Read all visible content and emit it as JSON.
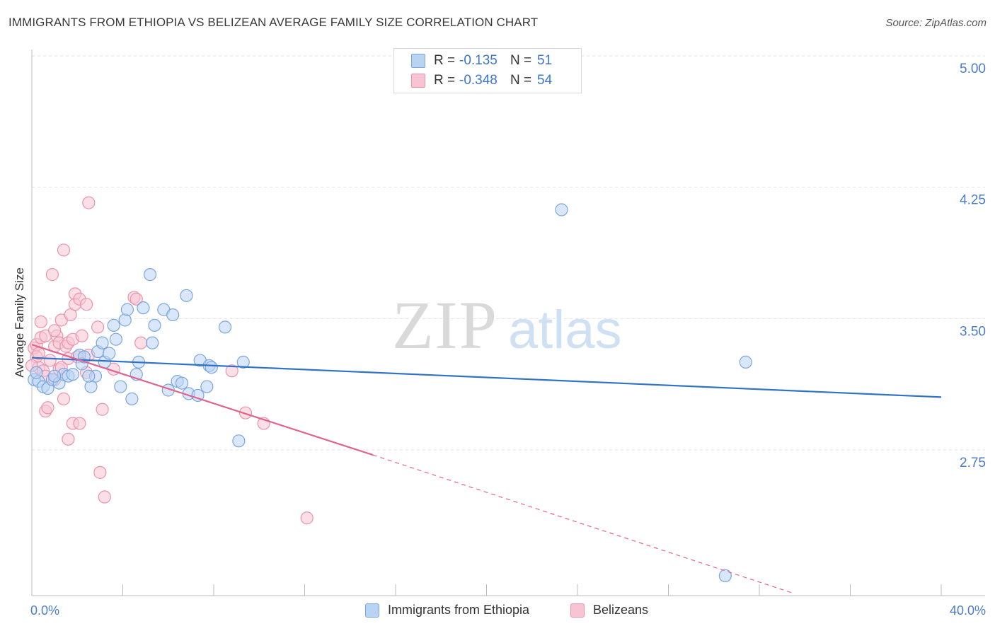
{
  "title": "IMMIGRANTS FROM ETHIOPIA VS BELIZEAN AVERAGE FAMILY SIZE CORRELATION CHART",
  "source": "Source: ZipAtlas.com",
  "watermark": {
    "zip": "ZIP",
    "atlas": "atlas"
  },
  "legend_top": {
    "rows": [
      {
        "r_label": "R =",
        "r_value": "-0.135",
        "n_label": "N =",
        "n_value": "51"
      },
      {
        "r_label": "R =",
        "r_value": "-0.348",
        "n_label": "N =",
        "n_value": "54"
      }
    ]
  },
  "legend_bottom": {
    "items": [
      {
        "label": "Immigrants from Ethiopia"
      },
      {
        "label": "Belizeans"
      }
    ]
  },
  "colors": {
    "blue_fill": "#b9d3f3",
    "blue_stroke": "#7aa6e0",
    "blue_line": "#2f72c8",
    "pink_fill": "#f8c4d3",
    "pink_stroke": "#ea93ad",
    "pink_line": "#e0628e",
    "grid": "#e2e2e2",
    "tick_text": "#4a7cc9"
  },
  "chart_data": {
    "type": "scatter",
    "title": "IMMIGRANTS FROM ETHIOPIA VS BELIZEAN AVERAGE FAMILY SIZE CORRELATION CHART",
    "xlabel": "",
    "ylabel": "Average Family Size",
    "xlim": [
      0,
      40
    ],
    "ylim": [
      2.0,
      5.15
    ],
    "x_tick_labels": [
      "0.0%",
      "40.0%"
    ],
    "y_ticks": [
      2.75,
      3.5,
      4.25,
      5.0
    ],
    "y_tick_labels": [
      "2.75",
      "3.50",
      "4.25",
      "5.00"
    ],
    "series": [
      {
        "name": "Immigrants from Ethiopia",
        "color": "blue",
        "points": [
          [
            0.1,
            3.22
          ],
          [
            0.3,
            3.21
          ],
          [
            0.5,
            3.18
          ],
          [
            0.7,
            3.17
          ],
          [
            0.9,
            3.22
          ],
          [
            1.2,
            3.2
          ],
          [
            1.4,
            3.25
          ],
          [
            1.6,
            3.24
          ],
          [
            1.8,
            3.25
          ],
          [
            2.1,
            3.36
          ],
          [
            2.2,
            3.31
          ],
          [
            2.3,
            3.35
          ],
          [
            2.6,
            3.18
          ],
          [
            2.8,
            3.24
          ],
          [
            2.9,
            3.38
          ],
          [
            3.1,
            3.43
          ],
          [
            3.2,
            3.32
          ],
          [
            3.4,
            3.37
          ],
          [
            3.6,
            3.53
          ],
          [
            3.7,
            3.45
          ],
          [
            3.9,
            3.18
          ],
          [
            4.1,
            3.56
          ],
          [
            4.2,
            3.62
          ],
          [
            4.4,
            3.11
          ],
          [
            4.6,
            3.25
          ],
          [
            4.7,
            3.32
          ],
          [
            4.9,
            3.63
          ],
          [
            5.2,
            3.82
          ],
          [
            5.3,
            3.43
          ],
          [
            5.4,
            3.53
          ],
          [
            5.8,
            3.62
          ],
          [
            6.0,
            3.16
          ],
          [
            6.2,
            3.59
          ],
          [
            6.4,
            3.21
          ],
          [
            6.6,
            3.2
          ],
          [
            6.8,
            3.7
          ],
          [
            6.9,
            3.14
          ],
          [
            7.3,
            3.13
          ],
          [
            7.4,
            3.33
          ],
          [
            7.7,
            3.18
          ],
          [
            7.8,
            3.3
          ],
          [
            7.9,
            3.29
          ],
          [
            8.5,
            3.52
          ],
          [
            9.1,
            2.87
          ],
          [
            9.3,
            3.32
          ],
          [
            23.3,
            4.19
          ],
          [
            31.4,
            3.32
          ],
          [
            30.5,
            2.1
          ],
          [
            0.2,
            3.26
          ],
          [
            1.0,
            3.24
          ],
          [
            2.5,
            3.24
          ]
        ]
      },
      {
        "name": "Belizeans",
        "color": "pink",
        "points": [
          [
            0.1,
            3.4
          ],
          [
            0.2,
            3.35
          ],
          [
            0.2,
            3.42
          ],
          [
            0.3,
            3.29
          ],
          [
            0.3,
            3.37
          ],
          [
            0.4,
            3.55
          ],
          [
            0.4,
            3.46
          ],
          [
            0.5,
            3.27
          ],
          [
            0.6,
            3.47
          ],
          [
            0.6,
            3.24
          ],
          [
            0.6,
            3.04
          ],
          [
            0.7,
            3.06
          ],
          [
            0.8,
            3.33
          ],
          [
            0.9,
            3.82
          ],
          [
            1.0,
            3.41
          ],
          [
            1.0,
            3.22
          ],
          [
            1.1,
            3.47
          ],
          [
            1.2,
            3.28
          ],
          [
            1.2,
            3.43
          ],
          [
            1.3,
            3.56
          ],
          [
            1.3,
            3.29
          ],
          [
            1.4,
            3.11
          ],
          [
            1.4,
            3.96
          ],
          [
            1.5,
            3.41
          ],
          [
            1.6,
            3.43
          ],
          [
            1.6,
            3.34
          ],
          [
            1.6,
            2.88
          ],
          [
            1.7,
            3.59
          ],
          [
            1.8,
            3.45
          ],
          [
            1.8,
            2.97
          ],
          [
            1.9,
            3.71
          ],
          [
            1.9,
            3.65
          ],
          [
            2.0,
            3.35
          ],
          [
            2.1,
            3.68
          ],
          [
            2.1,
            2.97
          ],
          [
            2.2,
            3.47
          ],
          [
            2.4,
            3.65
          ],
          [
            2.4,
            3.26
          ],
          [
            2.5,
            3.36
          ],
          [
            2.5,
            4.23
          ],
          [
            2.9,
            3.52
          ],
          [
            3.0,
            2.69
          ],
          [
            3.1,
            3.05
          ],
          [
            3.2,
            2.55
          ],
          [
            3.6,
            3.28
          ],
          [
            4.5,
            3.69
          ],
          [
            4.6,
            3.68
          ],
          [
            4.8,
            3.43
          ],
          [
            8.8,
            3.27
          ],
          [
            9.4,
            3.03
          ],
          [
            10.2,
            2.97
          ],
          [
            12.1,
            2.43
          ],
          [
            0.0,
            3.3
          ],
          [
            1.0,
            3.5
          ]
        ]
      }
    ],
    "trend_lines": [
      {
        "series": "Immigrants from Ethiopia",
        "x0": 0.0,
        "y0": 3.345,
        "x1": 40.0,
        "y1": 3.12,
        "style": "solid"
      },
      {
        "series": "Belizeans",
        "x0": 0.0,
        "y0": 3.42,
        "x1": 15.0,
        "y1": 2.79,
        "style": "solid"
      },
      {
        "series": "Belizeans",
        "x0": 15.0,
        "y0": 2.79,
        "x1": 33.5,
        "y1": 2.0,
        "style": "dashed"
      }
    ]
  }
}
